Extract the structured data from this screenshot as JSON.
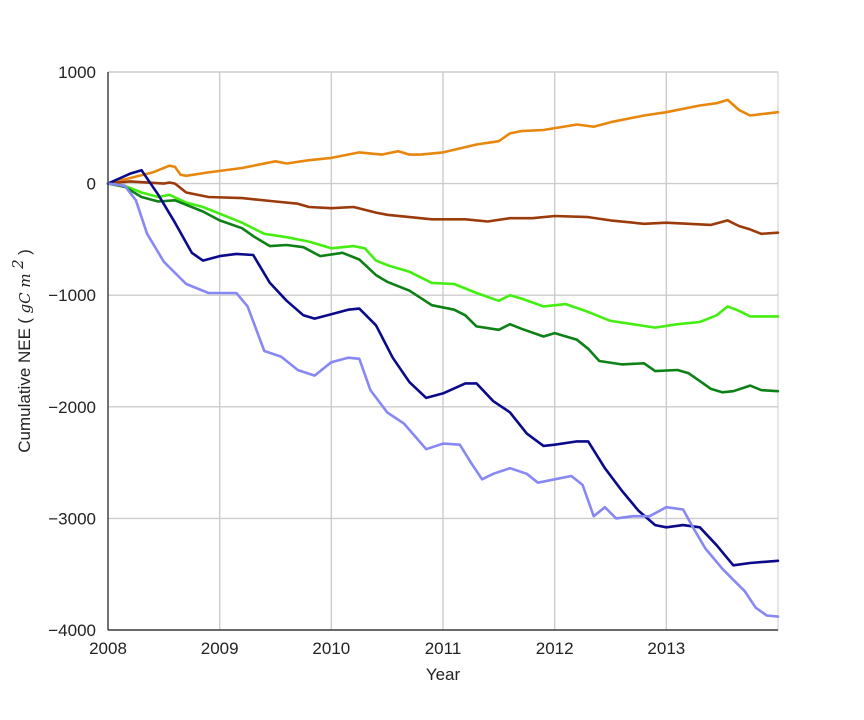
{
  "chart_data": {
    "type": "line",
    "title": "",
    "xlabel": "Year",
    "ylabel": "Cumulative NEE",
    "ylabel_unit": "gC m",
    "ylabel_unit_exponent": "2",
    "xlim": [
      2008,
      2014
    ],
    "ylim": [
      -4000,
      1000
    ],
    "xticks": [
      2008,
      2009,
      2010,
      2011,
      2012,
      2013
    ],
    "yticks": [
      -4000,
      -3000,
      -2000,
      -1000,
      0,
      1000
    ],
    "xtick_labels": [
      "2008",
      "2009",
      "2010",
      "2011",
      "2012",
      "2013"
    ],
    "ytick_labels": [
      "−4000",
      "−3000",
      "−2000",
      "−1000",
      "0",
      "1000"
    ],
    "grid": true,
    "legend": "none",
    "series": [
      {
        "color": "#e8870e",
        "x": [
          2008.0,
          2008.2,
          2008.4,
          2008.55,
          2008.6,
          2008.65,
          2008.7,
          2008.9,
          2009.2,
          2009.5,
          2009.6,
          2009.8,
          2010.0,
          2010.25,
          2010.45,
          2010.6,
          2010.7,
          2010.8,
          2011.0,
          2011.3,
          2011.5,
          2011.6,
          2011.7,
          2011.9,
          2012.2,
          2012.35,
          2012.5,
          2012.8,
          2013.0,
          2013.3,
          2013.45,
          2013.55,
          2013.65,
          2013.75,
          2014.0
        ],
        "y": [
          0,
          50,
          100,
          160,
          150,
          80,
          70,
          100,
          140,
          200,
          180,
          210,
          230,
          280,
          260,
          290,
          260,
          260,
          280,
          350,
          380,
          450,
          470,
          480,
          530,
          510,
          550,
          610,
          640,
          700,
          720,
          750,
          660,
          610,
          640
        ]
      },
      {
        "color": "#9b3a0a",
        "x": [
          2008.0,
          2008.2,
          2008.5,
          2008.55,
          2008.6,
          2008.7,
          2008.9,
          2009.2,
          2009.5,
          2009.7,
          2009.8,
          2010.0,
          2010.2,
          2010.4,
          2010.5,
          2010.7,
          2010.9,
          2011.2,
          2011.4,
          2011.6,
          2011.8,
          2012.0,
          2012.3,
          2012.5,
          2012.8,
          2013.0,
          2013.4,
          2013.55,
          2013.65,
          2013.75,
          2013.85,
          2014.0
        ],
        "y": [
          0,
          20,
          0,
          10,
          0,
          -80,
          -120,
          -130,
          -160,
          -180,
          -210,
          -220,
          -210,
          -260,
          -280,
          -300,
          -320,
          -320,
          -340,
          -310,
          -310,
          -290,
          -300,
          -330,
          -360,
          -350,
          -370,
          -330,
          -380,
          -410,
          -450,
          -440
        ]
      },
      {
        "color": "#44ee11",
        "x": [
          2008.0,
          2008.15,
          2008.3,
          2008.45,
          2008.55,
          2008.7,
          2008.85,
          2009.0,
          2009.2,
          2009.4,
          2009.6,
          2009.8,
          2010.0,
          2010.2,
          2010.3,
          2010.4,
          2010.5,
          2010.7,
          2010.9,
          2011.1,
          2011.3,
          2011.5,
          2011.6,
          2011.7,
          2011.9,
          2012.1,
          2012.3,
          2012.5,
          2012.7,
          2012.9,
          2013.1,
          2013.3,
          2013.45,
          2013.55,
          2013.65,
          2013.75,
          2014.0
        ],
        "y": [
          0,
          -20,
          -80,
          -120,
          -100,
          -170,
          -210,
          -270,
          -350,
          -450,
          -480,
          -520,
          -580,
          -560,
          -580,
          -690,
          -730,
          -790,
          -890,
          -900,
          -980,
          -1050,
          -1000,
          -1030,
          -1100,
          -1080,
          -1150,
          -1230,
          -1260,
          -1290,
          -1260,
          -1240,
          -1180,
          -1100,
          -1140,
          -1190,
          -1190
        ]
      },
      {
        "color": "#0d8016",
        "x": [
          2008.0,
          2008.15,
          2008.3,
          2008.45,
          2008.6,
          2008.7,
          2008.85,
          2009.0,
          2009.2,
          2009.3,
          2009.45,
          2009.6,
          2009.75,
          2009.9,
          2010.1,
          2010.25,
          2010.4,
          2010.5,
          2010.7,
          2010.9,
          2011.1,
          2011.2,
          2011.3,
          2011.5,
          2011.6,
          2011.7,
          2011.9,
          2012.0,
          2012.2,
          2012.3,
          2012.4,
          2012.6,
          2012.8,
          2012.9,
          2013.1,
          2013.2,
          2013.4,
          2013.5,
          2013.6,
          2013.75,
          2013.85,
          2014.0
        ],
        "y": [
          0,
          -30,
          -120,
          -160,
          -150,
          -190,
          -250,
          -330,
          -400,
          -470,
          -560,
          -550,
          -570,
          -650,
          -620,
          -680,
          -820,
          -880,
          -960,
          -1090,
          -1130,
          -1180,
          -1280,
          -1310,
          -1260,
          -1300,
          -1370,
          -1340,
          -1400,
          -1480,
          -1590,
          -1620,
          -1610,
          -1680,
          -1670,
          -1700,
          -1840,
          -1870,
          -1860,
          -1810,
          -1850,
          -1860
        ]
      },
      {
        "color": "#0a0a8a",
        "x": [
          2008.0,
          2008.2,
          2008.3,
          2008.45,
          2008.6,
          2008.75,
          2008.85,
          2009.0,
          2009.15,
          2009.3,
          2009.45,
          2009.6,
          2009.75,
          2009.85,
          2010.0,
          2010.15,
          2010.25,
          2010.4,
          2010.55,
          2010.7,
          2010.85,
          2011.0,
          2011.2,
          2011.3,
          2011.45,
          2011.6,
          2011.75,
          2011.9,
          2012.0,
          2012.2,
          2012.3,
          2012.45,
          2012.6,
          2012.75,
          2012.9,
          2013.0,
          2013.15,
          2013.3,
          2013.45,
          2013.6,
          2013.75,
          2014.0
        ],
        "y": [
          0,
          90,
          120,
          -100,
          -350,
          -620,
          -690,
          -650,
          -630,
          -640,
          -890,
          -1050,
          -1180,
          -1210,
          -1170,
          -1130,
          -1120,
          -1270,
          -1560,
          -1780,
          -1920,
          -1880,
          -1790,
          -1790,
          -1950,
          -2050,
          -2240,
          -2350,
          -2340,
          -2310,
          -2310,
          -2550,
          -2750,
          -2930,
          -3060,
          -3080,
          -3060,
          -3080,
          -3240,
          -3420,
          -3400,
          -3380
        ]
      },
      {
        "color": "#8888f5",
        "x": [
          2008.0,
          2008.15,
          2008.25,
          2008.35,
          2008.5,
          2008.7,
          2008.9,
          2009.0,
          2009.15,
          2009.25,
          2009.4,
          2009.55,
          2009.7,
          2009.85,
          2010.0,
          2010.15,
          2010.25,
          2010.35,
          2010.5,
          2010.65,
          2010.85,
          2011.0,
          2011.15,
          2011.25,
          2011.35,
          2011.45,
          2011.6,
          2011.75,
          2011.85,
          2012.0,
          2012.15,
          2012.25,
          2012.35,
          2012.45,
          2012.55,
          2012.7,
          2012.85,
          2013.0,
          2013.15,
          2013.25,
          2013.35,
          2013.5,
          2013.6,
          2013.7,
          2013.8,
          2013.9,
          2014.0
        ],
        "y": [
          0,
          -20,
          -150,
          -450,
          -700,
          -900,
          -980,
          -980,
          -980,
          -1100,
          -1500,
          -1550,
          -1670,
          -1720,
          -1600,
          -1560,
          -1570,
          -1850,
          -2050,
          -2150,
          -2380,
          -2330,
          -2340,
          -2500,
          -2650,
          -2600,
          -2550,
          -2600,
          -2680,
          -2650,
          -2620,
          -2700,
          -2980,
          -2900,
          -3000,
          -2980,
          -2980,
          -2900,
          -2920,
          -3100,
          -3270,
          -3450,
          -3550,
          -3650,
          -3800,
          -3870,
          -3880
        ]
      }
    ]
  }
}
